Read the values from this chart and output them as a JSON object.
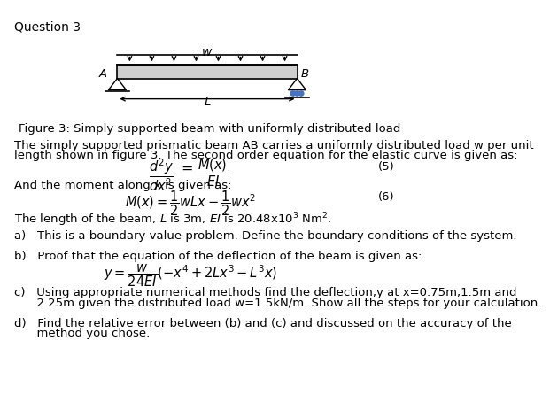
{
  "title": "Question 3",
  "background_color": "#ffffff",
  "text_color": "#000000",
  "roller_color": "#4472c4",
  "figure_caption": "Figure 3: Simply supported beam with uniformly distributed load",
  "intro_line1": "The simply supported prismatic beam AB carries a uniformly distributed load w per unit",
  "intro_line2": "length shown in figure 3. The second order equation for the elastic curve is given as:",
  "eq5_label": "(5)",
  "moment_intro": "And the moment along x is given as:",
  "eq6_label": "(6)",
  "length_note_1": "The length of the beam, ",
  "length_note_2": " is 3m, ",
  "length_note_3": " is 20.48x10",
  "length_note_4": " Nm",
  "part_a": "a)   This is a boundary value problem. Define the boundary conditions of the system.",
  "part_b_intro": "b)   Proof that the equation of the deflection of the beam is given as:",
  "part_c_line1": "c)   Using appropriate numerical methods find the deflection,y at x=0.75m,1.5m and",
  "part_c_line2": "      2.25m given the distributed load w=1.5kN/m. Show all the steps for your calculation.",
  "part_d_line1": "d)   Find the relative error between (b) and (c) and discussed on the accuracy of the",
  "part_d_line2": "      method you chose."
}
